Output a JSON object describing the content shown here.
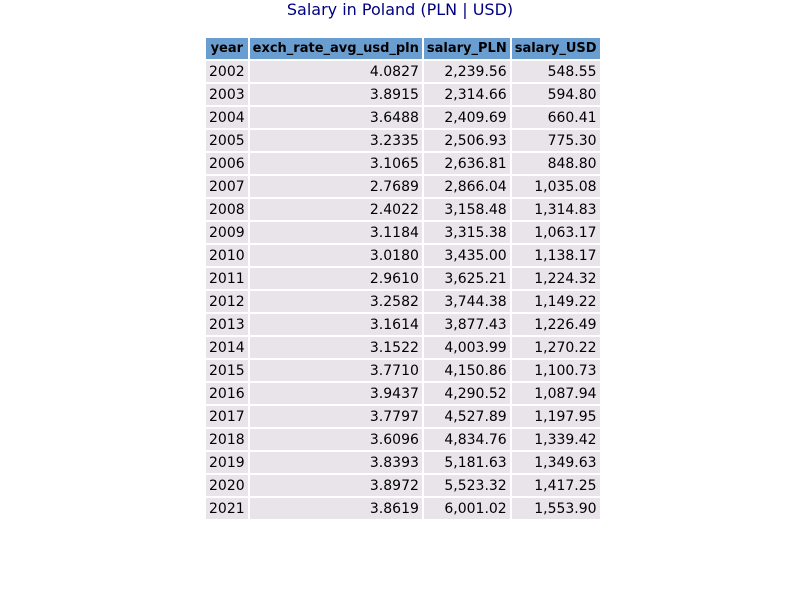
{
  "title": "Salary in Poland (PLN | USD)",
  "table": {
    "columns": [
      "year",
      "exch_rate_avg_usd_pln",
      "salary_PLN",
      "salary_USD"
    ],
    "rows": [
      [
        "2002",
        "4.0827",
        "2,239.56",
        "548.55"
      ],
      [
        "2003",
        "3.8915",
        "2,314.66",
        "594.80"
      ],
      [
        "2004",
        "3.6488",
        "2,409.69",
        "660.41"
      ],
      [
        "2005",
        "3.2335",
        "2,506.93",
        "775.30"
      ],
      [
        "2006",
        "3.1065",
        "2,636.81",
        "848.80"
      ],
      [
        "2007",
        "2.7689",
        "2,866.04",
        "1,035.08"
      ],
      [
        "2008",
        "2.4022",
        "3,158.48",
        "1,314.83"
      ],
      [
        "2009",
        "3.1184",
        "3,315.38",
        "1,063.17"
      ],
      [
        "2010",
        "3.0180",
        "3,435.00",
        "1,138.17"
      ],
      [
        "2011",
        "2.9610",
        "3,625.21",
        "1,224.32"
      ],
      [
        "2012",
        "3.2582",
        "3,744.38",
        "1,149.22"
      ],
      [
        "2013",
        "3.1614",
        "3,877.43",
        "1,226.49"
      ],
      [
        "2014",
        "3.1522",
        "4,003.99",
        "1,270.22"
      ],
      [
        "2015",
        "3.7710",
        "4,150.86",
        "1,100.73"
      ],
      [
        "2016",
        "3.9437",
        "4,290.52",
        "1,087.94"
      ],
      [
        "2017",
        "3.7797",
        "4,527.89",
        "1,197.95"
      ],
      [
        "2018",
        "3.6096",
        "4,834.76",
        "1,339.42"
      ],
      [
        "2019",
        "3.8393",
        "5,181.63",
        "1,349.63"
      ],
      [
        "2020",
        "3.8972",
        "5,523.32",
        "1,417.25"
      ],
      [
        "2021",
        "3.8619",
        "6,001.02",
        "1,553.90"
      ]
    ]
  },
  "colors": {
    "title": "#000080",
    "header_bg": "#6b9ed0",
    "cell_bg": "#e8e4ea"
  }
}
